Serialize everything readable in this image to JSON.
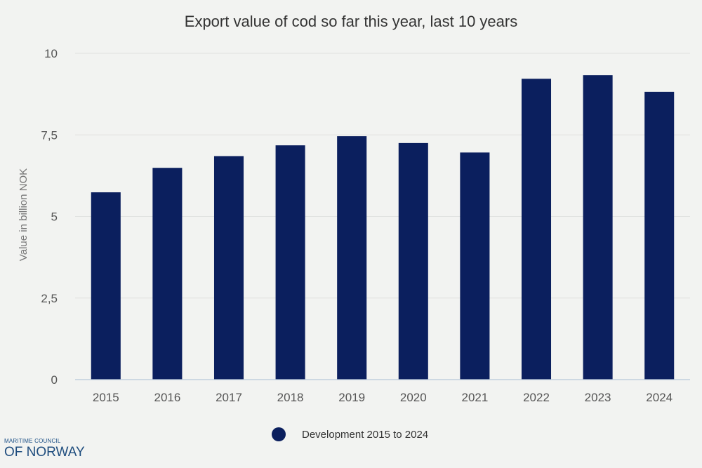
{
  "chart_data": {
    "type": "bar",
    "title": "Export value of cod so far this year, last 10 years",
    "xlabel": "",
    "ylabel": "Value in billion NOK",
    "categories": [
      "2015",
      "2016",
      "2017",
      "2018",
      "2019",
      "2020",
      "2021",
      "2022",
      "2023",
      "2024"
    ],
    "series": [
      {
        "name": "Development 2015 to 2024",
        "color": "#0b1f5e",
        "values": [
          5.74,
          6.49,
          6.85,
          7.18,
          7.46,
          7.25,
          6.96,
          9.22,
          9.33,
          8.82
        ]
      }
    ],
    "ylim": [
      0,
      10
    ],
    "yticks": [
      0,
      2.5,
      5,
      7.5,
      10
    ],
    "ytick_labels": [
      "0",
      "2,5",
      "5",
      "7,5",
      "10"
    ],
    "grid": true,
    "legend_position": "bottom-center"
  },
  "logo": {
    "line1": "MARITIME COUNCIL",
    "line2": "OF NORWAY"
  }
}
